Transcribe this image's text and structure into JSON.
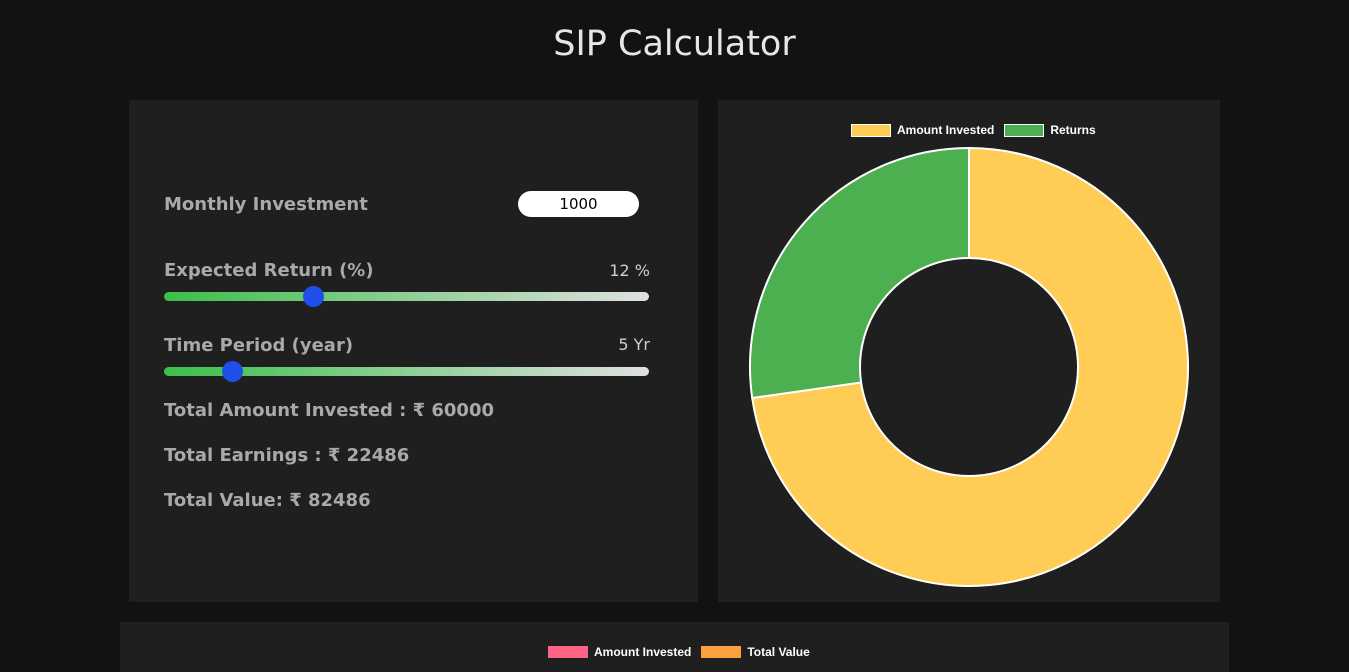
{
  "page_title": "SIP Calculator",
  "form": {
    "monthly_investment_label": "Monthly Investment",
    "monthly_investment_value": "1000",
    "expected_return_label": "Expected Return (%)",
    "expected_return_display": "12 %",
    "expected_return_fraction": 0.307,
    "time_period_label": "Time Period (year)",
    "time_period_display": "5 Yr",
    "time_period_fraction": 0.14
  },
  "summary": {
    "total_invested": "Total Amount Invested : ₹ 60000",
    "total_earnings": "Total Earnings : ₹ 22486",
    "total_value": "Total Value: ₹ 82486"
  },
  "chart_data": [
    {
      "type": "pie",
      "labels": [
        "Amount Invested",
        "Returns"
      ],
      "values": [
        60000,
        22486
      ],
      "colors": [
        "#ffcd56",
        "#4caf50"
      ],
      "legend": "top"
    },
    {
      "type": "bar",
      "series": [
        {
          "name": "Amount Invested",
          "color": "#ff6384"
        },
        {
          "name": "Total Value",
          "color": "#ff9f40"
        }
      ],
      "legend": "top"
    }
  ]
}
